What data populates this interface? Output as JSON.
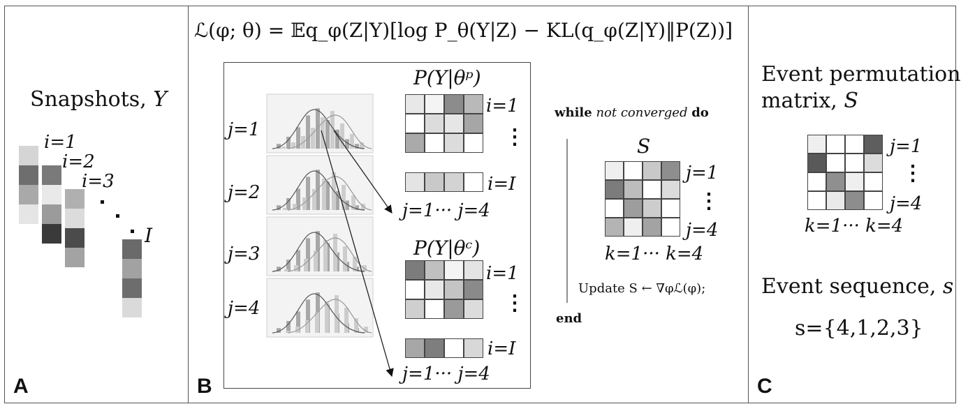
{
  "panel_a": {
    "label": "A",
    "title_text": "Snapshots, ",
    "title_var": "Y",
    "idx_1": "i=1",
    "idx_2": "i=2",
    "idx_3": "i=3",
    "idx_last": "I",
    "snapshots": [
      [
        "#d5d5d5",
        "#6e6e6e",
        "#a9a9a9",
        "#e5e5e5"
      ],
      [
        "#7a7a7a",
        "#e9e9e9",
        "#9b9b9b",
        "#3a3a3a"
      ],
      [
        "#b0b0b0",
        "#dcdcdc",
        "#4b4b4b",
        "#a3a3a3"
      ],
      [
        "#6a6a6a",
        "#a2a2a2",
        "#6d6d6d",
        "#dadada"
      ]
    ]
  },
  "panel_b": {
    "label": "B",
    "objective": "ℒ(φ; θ) = 𝔼q_φ(Z|Y)[log P_θ(Y|Z) − KL(q_φ(Z|Y)‖P(Z))]",
    "j_labels": [
      "j=1",
      "j=2",
      "j=3",
      "j=4"
    ],
    "ptheta_p": "P(Y|θᵖ)",
    "ptheta_c": "P(Y|θᶜ)",
    "row_i1": "i=1",
    "row_iI": "i=I",
    "col_range": "j=1··· j=4",
    "vdots": "⋮",
    "matrix_p": [
      [
        "#e8e8e8",
        "#f4f4f4",
        "#8c8c8c",
        "#b9b9b9"
      ],
      [
        "#ffffff",
        "#dcdcdc",
        "#e6e6e6",
        "#a6a6a6"
      ],
      [
        "#aaaaaa",
        "#ffffff",
        "#dcdcdc",
        "#ffffff"
      ]
    ],
    "matrix_p_last": [
      "#e4e4e4",
      "#c9c9c9",
      "#d3d3d3",
      "#ffffff"
    ],
    "matrix_c": [
      [
        "#7c7c7c",
        "#c0c0c0",
        "#f4f4f4",
        "#e4e4e4"
      ],
      [
        "#ffffff",
        "#e8e8e8",
        "#c4c4c4",
        "#8a8a8a"
      ],
      [
        "#cfcfcf",
        "#ffffff",
        "#9a9a9a",
        "#dcdcdc"
      ]
    ],
    "matrix_c_last": [
      "#a7a7a7",
      "#7e7e7e",
      "#ffffff",
      "#d8d8d8"
    ],
    "algo_while": "while",
    "algo_cond": "not converged",
    "algo_do": "do",
    "algo_S": "S",
    "algo_j1": "j=1",
    "algo_j4": "j=4",
    "algo_k_range": "k=1··· k=4",
    "algo_update": "Update S ← ∇φℒ(φ);",
    "algo_end": "end",
    "matrix_s": [
      [
        "#efefef",
        "#ffffff",
        "#c9c9c9",
        "#8e8e8e"
      ],
      [
        "#7c7c7c",
        "#bdbdbd",
        "#ffffff",
        "#dcdcdc"
      ],
      [
        "#ffffff",
        "#9d9d9d",
        "#cdcdcd",
        "#ffffff"
      ],
      [
        "#b4b4b4",
        "#efefef",
        "#a3a3a3",
        "#ffffff"
      ]
    ]
  },
  "panel_c": {
    "label": "C",
    "title_line1": "Event permutation",
    "title_line2_text": "matrix, ",
    "title_line2_var": "S",
    "j1": "j=1",
    "j4": "j=4",
    "k_range": "k=1··· k=4",
    "vdots": "⋮",
    "seq_text": "Event sequence, ",
    "seq_var": "s",
    "seq_value": "s={4,1,2,3}",
    "matrix": [
      [
        "#efefef",
        "#ffffff",
        "#ffffff",
        "#5e5e5e"
      ],
      [
        "#595959",
        "#ffffff",
        "#ffffff",
        "#dcdcdc"
      ],
      [
        "#ffffff",
        "#8f8f8f",
        "#efefef",
        "#ffffff"
      ],
      [
        "#ffffff",
        "#e9e9e9",
        "#8d8d8d",
        "#ffffff"
      ]
    ]
  }
}
